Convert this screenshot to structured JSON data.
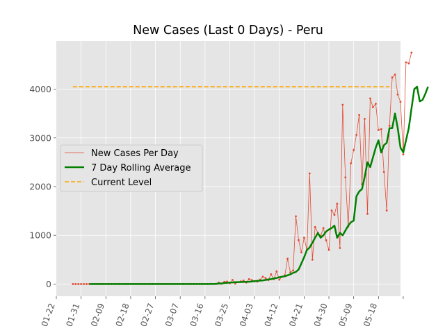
{
  "chart_data": {
    "type": "line",
    "title": "New Cases (Last 0 Days) - Peru",
    "xlabel": "",
    "ylabel": "",
    "xlim": [
      "2020-01-22",
      "2020-05-26"
    ],
    "ylim": [
      -250,
      4990
    ],
    "grid": true,
    "legend_position": "center-left",
    "x_ticks": [
      "01-22",
      "01-31",
      "02-09",
      "02-18",
      "02-27",
      "03-07",
      "03-16",
      "03-25",
      "04-03",
      "04-12",
      "04-21",
      "04-30",
      "05-09",
      "05-18"
    ],
    "y_ticks": [
      0,
      1000,
      2000,
      3000,
      4000
    ],
    "colors": {
      "background": "#e5e5e5",
      "grid": "#ffffff",
      "daily": "#e24a33",
      "rolling": "#008000",
      "current": "#ffa500"
    },
    "series": [
      {
        "name": "New Cases Per Day",
        "style": "thin-line-with-points",
        "start_date": "2020-01-28",
        "values": [
          0,
          0,
          0,
          0,
          0,
          0,
          0,
          0,
          0,
          0,
          0,
          0,
          0,
          0,
          0,
          0,
          0,
          0,
          0,
          0,
          0,
          0,
          0,
          0,
          0,
          0,
          0,
          0,
          0,
          0,
          0,
          0,
          0,
          0,
          0,
          0,
          0,
          0,
          0,
          0,
          0,
          0,
          0,
          0,
          0,
          0,
          0,
          0,
          0,
          1,
          5,
          1,
          2,
          30,
          8,
          45,
          50,
          15,
          85,
          10,
          40,
          55,
          70,
          30,
          100,
          80,
          60,
          50,
          90,
          150,
          120,
          80,
          200,
          100,
          260,
          90,
          150,
          180,
          520,
          240,
          280,
          1390,
          900,
          650,
          950,
          700,
          2270,
          500,
          1170,
          1050,
          990,
          1150,
          900,
          700,
          1510,
          1420,
          1650,
          740,
          3680,
          2190,
          1180,
          2480,
          2750,
          3060,
          3470,
          2050,
          3390,
          1440,
          3810,
          3630,
          3700,
          3160,
          3180,
          2300,
          1510,
          3250,
          4240,
          4300,
          3890,
          3740,
          2660,
          4550,
          4530,
          4750
        ]
      },
      {
        "name": "7 Day Rolling Average",
        "style": "thick-line",
        "start_date": "2020-02-03",
        "values": [
          0,
          0,
          0,
          0,
          0,
          0,
          0,
          0,
          0,
          0,
          0,
          0,
          0,
          0,
          0,
          0,
          0,
          0,
          0,
          0,
          0,
          0,
          0,
          0,
          0,
          0,
          0,
          0,
          0,
          0,
          0,
          0,
          0,
          0,
          0,
          0,
          0,
          0,
          0,
          0,
          0,
          0,
          0,
          0,
          1,
          2,
          5,
          10,
          14,
          20,
          25,
          30,
          33,
          37,
          40,
          42,
          44,
          46,
          48,
          52,
          58,
          65,
          70,
          75,
          85,
          95,
          100,
          115,
          125,
          140,
          150,
          160,
          180,
          200,
          230,
          250,
          300,
          420,
          550,
          700,
          750,
          850,
          950,
          1050,
          950,
          1000,
          1080,
          1120,
          1150,
          1200,
          950,
          1050,
          1000,
          1100,
          1200,
          1270,
          1300,
          1800,
          1900,
          1950,
          2200,
          2500,
          2400,
          2600,
          2800,
          2950,
          2700,
          2850,
          2900,
          3200,
          3200,
          3500,
          3200,
          2800,
          2700,
          2950,
          3200,
          3600,
          4000,
          4050,
          3750,
          3780,
          3900,
          4050
        ]
      },
      {
        "name": "Current Level",
        "style": "dashed",
        "start_date": "2020-01-28",
        "end_date": "2020-05-22",
        "value": 4050
      }
    ]
  }
}
